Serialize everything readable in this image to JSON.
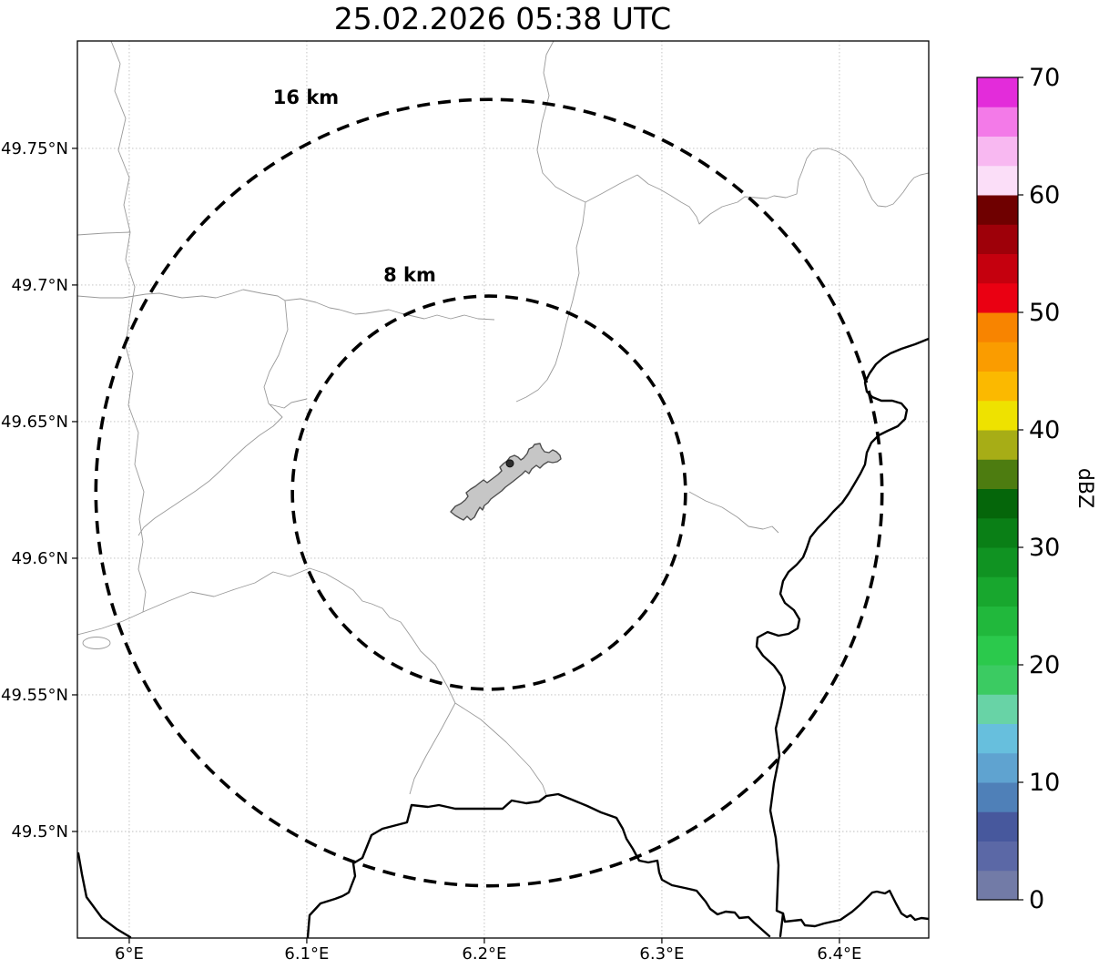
{
  "chart_data": {
    "type": "map",
    "title": "25.02.2026 05:38 UTC",
    "x_axis": {
      "range": [
        5.9708,
        6.4503
      ],
      "ticks": [
        {
          "value": 6.0,
          "label": "6°E"
        },
        {
          "value": 6.1,
          "label": "6.1°E"
        },
        {
          "value": 6.2,
          "label": "6.2°E"
        },
        {
          "value": 6.3,
          "label": "6.3°E"
        },
        {
          "value": 6.4,
          "label": "6.4°E"
        }
      ]
    },
    "y_axis": {
      "range": [
        49.461,
        49.7893
      ],
      "ticks": [
        {
          "value": 49.5,
          "label": "49.5°N"
        },
        {
          "value": 49.55,
          "label": "49.55°N"
        },
        {
          "value": 49.6,
          "label": "49.6°N"
        },
        {
          "value": 49.65,
          "label": "49.65°N"
        },
        {
          "value": 49.7,
          "label": "49.7°N"
        },
        {
          "value": 49.75,
          "label": "49.75°N"
        }
      ]
    },
    "grid": true,
    "center": {
      "lon": 6.2026,
      "lat": 49.624
    },
    "range_rings": [
      {
        "radius_km": 8,
        "label": "8 km"
      },
      {
        "radius_km": 16,
        "label": "16 km"
      }
    ],
    "site_marker": {
      "lon": 6.2144,
      "lat": 49.6347
    },
    "echoes": [],
    "colorbar": {
      "unit": "dBZ",
      "min": 0,
      "max": 70,
      "ticks": [
        0,
        10,
        20,
        30,
        40,
        50,
        60,
        70
      ],
      "segment_step_dbz": 2.5,
      "colors": [
        "#727ba7",
        "#5b68a6",
        "#47589d",
        "#4f80b8",
        "#5fa3d0",
        "#67bfdd",
        "#68d3a6",
        "#3bcb62",
        "#2bc94c",
        "#21b83c",
        "#18a72e",
        "#109322",
        "#0a7f16",
        "#05660a",
        "#4d7c10",
        "#a7ad16",
        "#eee200",
        "#fbb900",
        "#fa9c00",
        "#f88400",
        "#ea0012",
        "#c5000e",
        "#9e0009",
        "#6f0000",
        "#fbdef8",
        "#f8b8f1",
        "#f37ae8",
        "#e32cda"
      ]
    }
  }
}
